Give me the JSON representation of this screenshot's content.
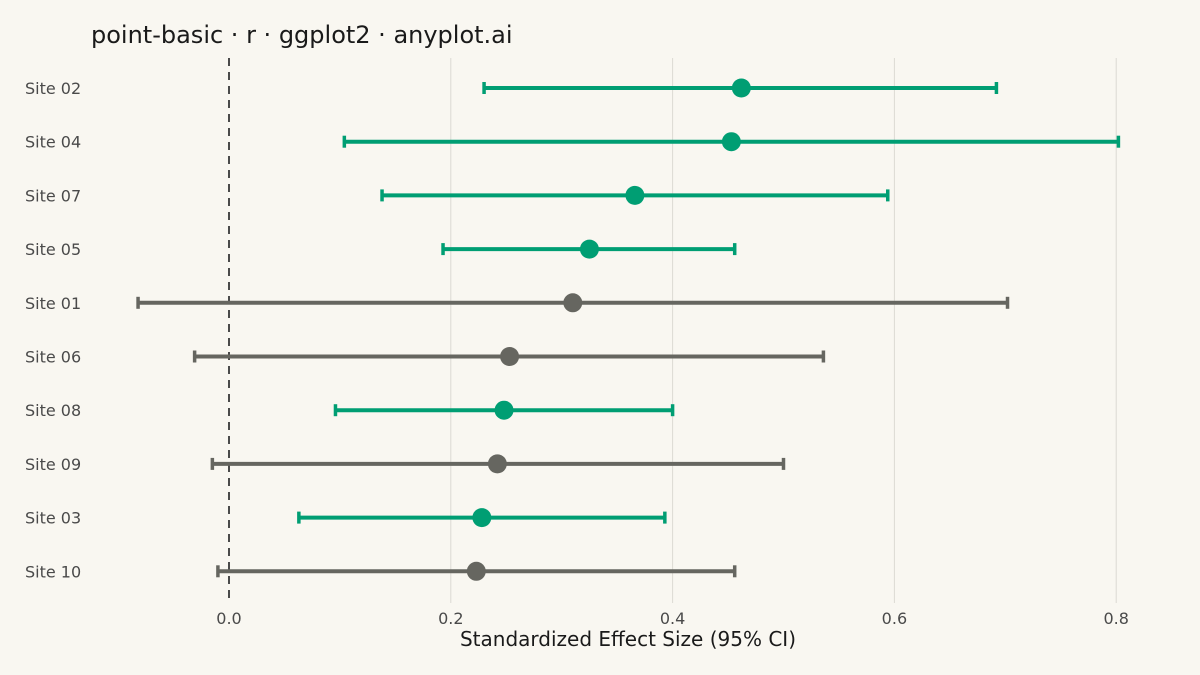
{
  "chart_data": {
    "type": "scatter",
    "title": "point-basic · r · ggplot2 · anyplot.ai",
    "xlabel": "Standardized Effect Size (95% CI)",
    "ylabel": "",
    "xlim": [
      -0.1,
      0.85
    ],
    "xticks": [
      0.0,
      0.2,
      0.4,
      0.6,
      0.8
    ],
    "xtick_labels": [
      "0.0",
      "0.2",
      "0.4",
      "0.6",
      "0.8"
    ],
    "reference_line": 0.0,
    "grid": "vertical major",
    "legend": "none",
    "colors": {
      "significant": "#009E73",
      "not_significant": "#666660",
      "reference": "#4A4A4A",
      "grid": "#DCDAD3"
    },
    "categories": [
      "Site 02",
      "Site 04",
      "Site 07",
      "Site 05",
      "Site 01",
      "Site 06",
      "Site 08",
      "Site 09",
      "Site 03",
      "Site 10"
    ],
    "points": [
      {
        "site": "Site 02",
        "estimate": 0.462,
        "lower": 0.23,
        "upper": 0.692,
        "significant": true
      },
      {
        "site": "Site 04",
        "estimate": 0.453,
        "lower": 0.104,
        "upper": 0.802,
        "significant": true
      },
      {
        "site": "Site 07",
        "estimate": 0.366,
        "lower": 0.138,
        "upper": 0.594,
        "significant": true
      },
      {
        "site": "Site 05",
        "estimate": 0.325,
        "lower": 0.193,
        "upper": 0.456,
        "significant": true
      },
      {
        "site": "Site 01",
        "estimate": 0.31,
        "lower": -0.082,
        "upper": 0.702,
        "significant": false
      },
      {
        "site": "Site 06",
        "estimate": 0.253,
        "lower": -0.031,
        "upper": 0.536,
        "significant": false
      },
      {
        "site": "Site 08",
        "estimate": 0.248,
        "lower": 0.096,
        "upper": 0.4,
        "significant": true
      },
      {
        "site": "Site 09",
        "estimate": 0.242,
        "lower": -0.015,
        "upper": 0.5,
        "significant": false
      },
      {
        "site": "Site 03",
        "estimate": 0.228,
        "lower": 0.063,
        "upper": 0.393,
        "significant": true
      },
      {
        "site": "Site 10",
        "estimate": 0.223,
        "lower": -0.01,
        "upper": 0.456,
        "significant": false
      }
    ]
  }
}
